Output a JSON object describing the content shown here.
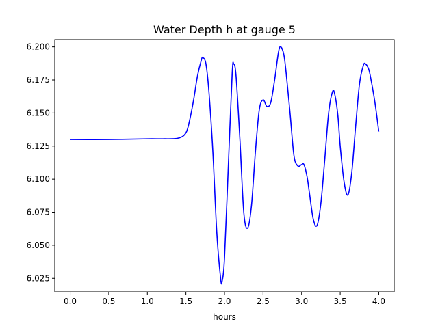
{
  "chart_data": {
    "type": "line",
    "title": "Water Depth h at gauge 5",
    "xlabel": "hours",
    "ylabel": "",
    "xlim": [
      -0.2,
      4.2
    ],
    "ylim": [
      6.0148,
      6.2055
    ],
    "xticks": [
      "0.0",
      "0.5",
      "1.0",
      "1.5",
      "2.0",
      "2.5",
      "3.0",
      "3.5",
      "4.0"
    ],
    "yticks": [
      "6.025",
      "6.050",
      "6.075",
      "6.100",
      "6.125",
      "6.150",
      "6.175",
      "6.200"
    ],
    "grid": false,
    "series": [
      {
        "color": "#0000ff",
        "x": [
          0.0,
          0.5,
          1.0,
          1.2,
          1.4,
          1.5,
          1.55,
          1.6,
          1.65,
          1.7,
          1.72,
          1.76,
          1.8,
          1.85,
          1.9,
          1.95,
          1.97,
          2.0,
          2.05,
          2.1,
          2.12,
          2.15,
          2.2,
          2.25,
          2.3,
          2.35,
          2.4,
          2.45,
          2.5,
          2.55,
          2.6,
          2.65,
          2.7,
          2.73,
          2.77,
          2.8,
          2.85,
          2.9,
          2.95,
          3.0,
          3.03,
          3.07,
          3.1,
          3.15,
          3.2,
          3.25,
          3.3,
          3.35,
          3.4,
          3.43,
          3.47,
          3.5,
          3.55,
          3.6,
          3.65,
          3.7,
          3.75,
          3.8,
          3.83,
          3.87,
          3.9,
          3.95,
          4.0
        ],
        "y": [
          6.13,
          6.13,
          6.1305,
          6.1305,
          6.131,
          6.135,
          6.145,
          6.16,
          6.178,
          6.19,
          6.192,
          6.187,
          6.165,
          6.12,
          6.06,
          6.025,
          6.023,
          6.04,
          6.11,
          6.18,
          6.187,
          6.178,
          6.13,
          6.075,
          6.063,
          6.08,
          6.12,
          6.152,
          6.16,
          6.155,
          6.158,
          6.175,
          6.196,
          6.2,
          6.194,
          6.18,
          6.15,
          6.118,
          6.11,
          6.111,
          6.111,
          6.102,
          6.09,
          6.07,
          6.065,
          6.082,
          6.115,
          6.15,
          6.166,
          6.164,
          6.148,
          6.125,
          6.098,
          6.088,
          6.105,
          6.14,
          6.172,
          6.186,
          6.187,
          6.183,
          6.175,
          6.158,
          6.136
        ]
      }
    ]
  }
}
